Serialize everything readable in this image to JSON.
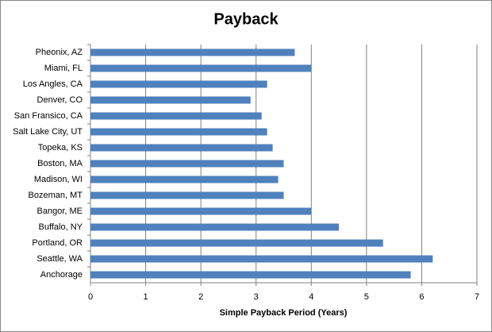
{
  "chart_data": {
    "type": "hbar",
    "title": "Payback",
    "x_label": "Simple Payback Period (Years)",
    "categories": [
      "Pheonix, AZ",
      "Miami, FL",
      "Los Angles, CA",
      "Denver, CO",
      "San Fransico, CA",
      "Salt Lake City, UT",
      "Topeka, KS",
      "Boston, MA",
      "Madison, WI",
      "Bozeman, MT",
      "Bangor, ME",
      "Buffalo, NY",
      "Portland, OR",
      "Seattle, WA",
      "Anchorage"
    ],
    "values": [
      3.7,
      4.0,
      3.2,
      2.9,
      3.1,
      3.2,
      3.3,
      3.5,
      3.4,
      3.5,
      4.0,
      4.5,
      5.3,
      6.2,
      5.8
    ],
    "color": "#4f81bd",
    "xlim": [
      0,
      7
    ],
    "xticks": [
      0,
      1,
      2,
      3,
      4,
      5,
      6,
      7
    ],
    "grid": true
  }
}
